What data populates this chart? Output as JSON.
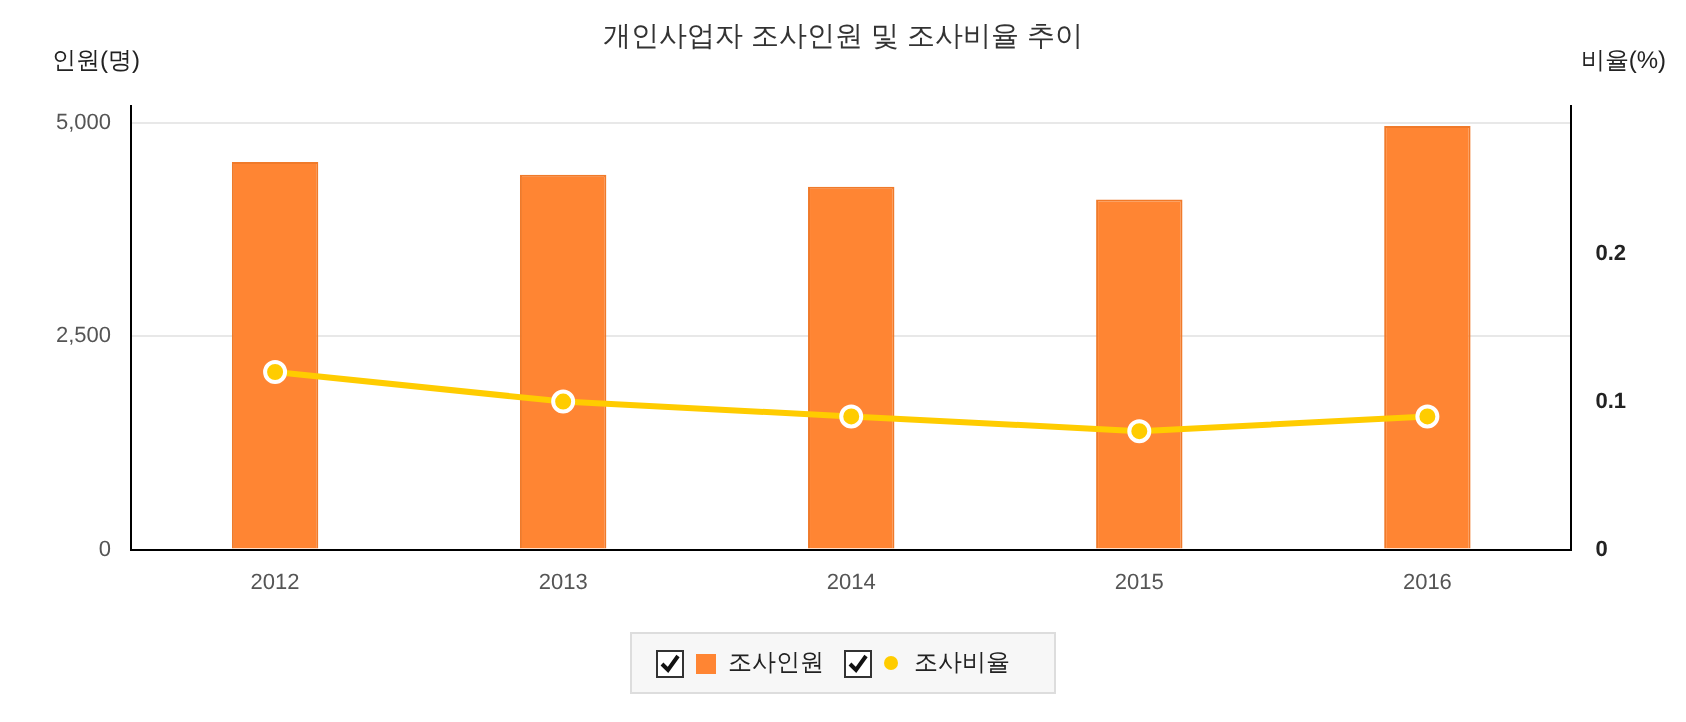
{
  "chart_data": {
    "type": "bar",
    "title": "개인사업자 조사인원 및 조사비율 추이",
    "ylabel": "인원(명)",
    "y2label": "비율(%)",
    "categories": [
      "2012",
      "2013",
      "2014",
      "2015",
      "2016"
    ],
    "series": [
      {
        "name": "조사인원",
        "color": "#ff8533",
        "values": [
          4540,
          4390,
          4250,
          4100,
          4960
        ]
      },
      {
        "name": "조사비율",
        "type": "line",
        "axis": "y2",
        "color": "#ffcc00",
        "marker": "circle",
        "values": [
          0.12,
          0.1,
          0.09,
          0.08,
          0.09
        ]
      }
    ],
    "ylim": [
      0,
      5200
    ],
    "yticks": [
      0,
      {
        "value": 2500,
        "label": "2,500"
      },
      {
        "value": 5000,
        "label": "5,000"
      }
    ],
    "y2lim": [
      0,
      0.3
    ],
    "y2ticks": [
      0,
      0.1,
      0.2
    ],
    "grid": "y",
    "legend": "bottom"
  }
}
